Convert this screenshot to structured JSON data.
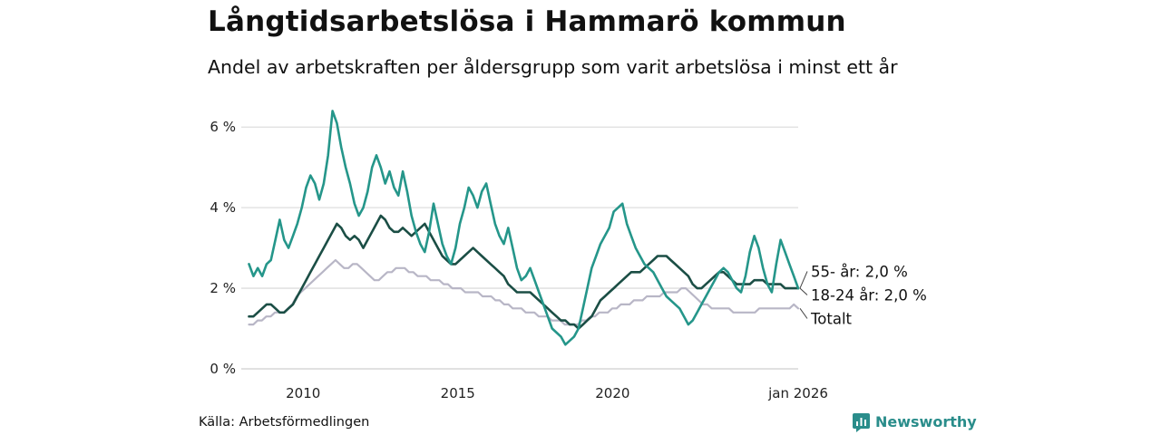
{
  "header": {
    "title": "Långtidsarbetslösa i Hammarö kommun",
    "subtitle": "Andel av arbetskraften per åldersgrupp som varit arbetslösa i minst ett år"
  },
  "footer": {
    "source": "Källa: Arbetsförmedlingen",
    "brand": "Newsworthy",
    "brand_color": "#2a8d8b"
  },
  "chart_data": {
    "type": "line",
    "title": "Långtidsarbetslösa i Hammarö kommun",
    "subtitle": "Andel av arbetskraften per åldersgrupp som varit arbetslösa i minst ett år",
    "xlabel": "",
    "ylabel": "",
    "x_start": 2008.25,
    "x_end": 2026.0,
    "xlim": [
      2008.0,
      2026.0
    ],
    "ylim": [
      0,
      6.5
    ],
    "grid": true,
    "legend": "end-of-line labels",
    "x_ticks": [
      {
        "value": 2010,
        "label": "2010"
      },
      {
        "value": 2015,
        "label": "2015"
      },
      {
        "value": 2020,
        "label": "2020"
      },
      {
        "value": 2026,
        "label": "jan 2026"
      }
    ],
    "y_ticks": [
      {
        "value": 0,
        "label": "0 %"
      },
      {
        "value": 2,
        "label": "2 %"
      },
      {
        "value": 4,
        "label": "4 %"
      },
      {
        "value": 6,
        "label": "6 %"
      }
    ],
    "series": [
      {
        "name": "Totalt",
        "color": "#b8b6c6",
        "end_label": "Totalt",
        "values": [
          1.1,
          1.1,
          1.2,
          1.2,
          1.3,
          1.3,
          1.4,
          1.4,
          1.4,
          1.5,
          1.6,
          1.8,
          1.9,
          2.0,
          2.1,
          2.2,
          2.3,
          2.4,
          2.5,
          2.6,
          2.7,
          2.6,
          2.5,
          2.5,
          2.6,
          2.6,
          2.5,
          2.4,
          2.3,
          2.2,
          2.2,
          2.3,
          2.4,
          2.4,
          2.5,
          2.5,
          2.5,
          2.4,
          2.4,
          2.3,
          2.3,
          2.3,
          2.2,
          2.2,
          2.2,
          2.1,
          2.1,
          2.0,
          2.0,
          2.0,
          1.9,
          1.9,
          1.9,
          1.9,
          1.8,
          1.8,
          1.8,
          1.7,
          1.7,
          1.6,
          1.6,
          1.5,
          1.5,
          1.5,
          1.4,
          1.4,
          1.4,
          1.3,
          1.3,
          1.3,
          1.2,
          1.2,
          1.2,
          1.1,
          1.1,
          1.1,
          1.1,
          1.2,
          1.2,
          1.3,
          1.3,
          1.4,
          1.4,
          1.4,
          1.5,
          1.5,
          1.6,
          1.6,
          1.6,
          1.7,
          1.7,
          1.7,
          1.8,
          1.8,
          1.8,
          1.8,
          1.9,
          1.9,
          1.9,
          1.9,
          2.0,
          2.0,
          1.9,
          1.8,
          1.7,
          1.6,
          1.6,
          1.5,
          1.5,
          1.5,
          1.5,
          1.5,
          1.4,
          1.4,
          1.4,
          1.4,
          1.4,
          1.4,
          1.5,
          1.5,
          1.5,
          1.5,
          1.5,
          1.5,
          1.5,
          1.5,
          1.6,
          1.5
        ]
      },
      {
        "name": "55- år",
        "color": "#1b4e45",
        "end_label": "55- år: 2,0 %",
        "values": [
          1.3,
          1.3,
          1.4,
          1.5,
          1.6,
          1.6,
          1.5,
          1.4,
          1.4,
          1.5,
          1.6,
          1.8,
          2.0,
          2.2,
          2.4,
          2.6,
          2.8,
          3.0,
          3.2,
          3.4,
          3.6,
          3.5,
          3.3,
          3.2,
          3.3,
          3.2,
          3.0,
          3.2,
          3.4,
          3.6,
          3.8,
          3.7,
          3.5,
          3.4,
          3.4,
          3.5,
          3.4,
          3.3,
          3.4,
          3.5,
          3.6,
          3.4,
          3.2,
          3.0,
          2.8,
          2.7,
          2.6,
          2.6,
          2.7,
          2.8,
          2.9,
          3.0,
          2.9,
          2.8,
          2.7,
          2.6,
          2.5,
          2.4,
          2.3,
          2.1,
          2.0,
          1.9,
          1.9,
          1.9,
          1.9,
          1.8,
          1.7,
          1.6,
          1.5,
          1.4,
          1.3,
          1.2,
          1.2,
          1.1,
          1.1,
          1.0,
          1.1,
          1.2,
          1.3,
          1.5,
          1.7,
          1.8,
          1.9,
          2.0,
          2.1,
          2.2,
          2.3,
          2.4,
          2.4,
          2.4,
          2.5,
          2.6,
          2.7,
          2.8,
          2.8,
          2.8,
          2.7,
          2.6,
          2.5,
          2.4,
          2.3,
          2.1,
          2.0,
          2.0,
          2.1,
          2.2,
          2.3,
          2.4,
          2.4,
          2.3,
          2.2,
          2.1,
          2.1,
          2.1,
          2.1,
          2.2,
          2.2,
          2.2,
          2.1,
          2.1,
          2.1,
          2.1,
          2.0,
          2.0,
          2.0,
          2.0
        ]
      },
      {
        "name": "18-24 år",
        "color": "#25968a",
        "end_label": "18-24 år: 2,0 %",
        "values": [
          2.6,
          2.3,
          2.5,
          2.3,
          2.6,
          2.7,
          3.2,
          3.7,
          3.2,
          3.0,
          3.3,
          3.6,
          4.0,
          4.5,
          4.8,
          4.6,
          4.2,
          4.6,
          5.3,
          6.4,
          6.1,
          5.5,
          5.0,
          4.6,
          4.1,
          3.8,
          4.0,
          4.4,
          5.0,
          5.3,
          5.0,
          4.6,
          4.9,
          4.5,
          4.3,
          4.9,
          4.4,
          3.8,
          3.4,
          3.1,
          2.9,
          3.4,
          4.1,
          3.6,
          3.1,
          2.8,
          2.6,
          3.0,
          3.6,
          4.0,
          4.5,
          4.3,
          4.0,
          4.4,
          4.6,
          4.1,
          3.6,
          3.3,
          3.1,
          3.5,
          3.0,
          2.5,
          2.2,
          2.3,
          2.5,
          2.2,
          1.9,
          1.6,
          1.3,
          1.0,
          0.9,
          0.8,
          0.6,
          0.7,
          0.8,
          1.0,
          1.5,
          2.0,
          2.5,
          2.8,
          3.1,
          3.3,
          3.5,
          3.9,
          4.0,
          4.1,
          3.6,
          3.3,
          3.0,
          2.8,
          2.6,
          2.5,
          2.4,
          2.2,
          2.0,
          1.8,
          1.7,
          1.6,
          1.5,
          1.3,
          1.1,
          1.2,
          1.4,
          1.6,
          1.8,
          2.0,
          2.2,
          2.4,
          2.5,
          2.4,
          2.2,
          2.0,
          1.9,
          2.3,
          2.9,
          3.3,
          3.0,
          2.5,
          2.1,
          1.9,
          2.6,
          3.2,
          2.9,
          2.6,
          2.3,
          2.0
        ]
      }
    ]
  }
}
